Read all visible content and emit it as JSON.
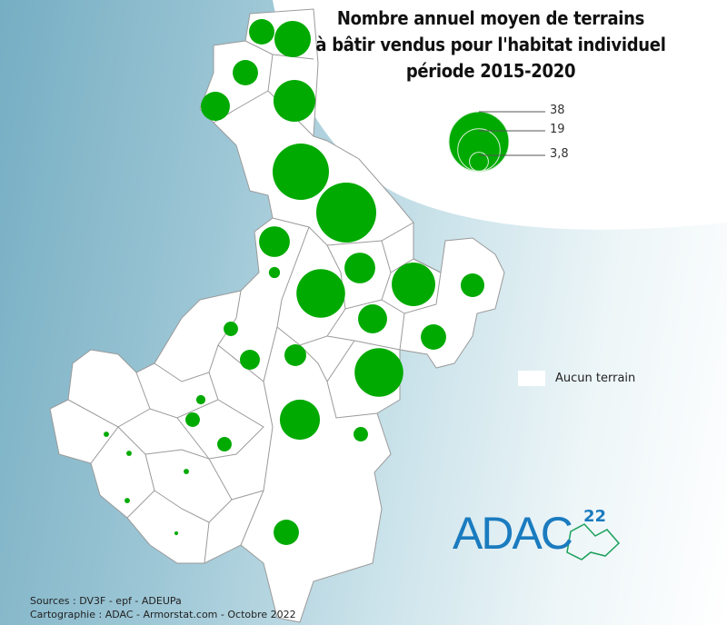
{
  "title": {
    "line1": "Nombre annuel moyen de terrains",
    "line2": "à bâtir vendus pour l'habitat individuel",
    "line3": "période 2015-2020"
  },
  "legend": {
    "sizes": [
      38,
      19,
      3.8
    ],
    "size_labels": [
      "38",
      "19",
      "3,8"
    ],
    "none_label": "Aucun terrain"
  },
  "colors": {
    "circle": "#00aa00",
    "commune_fill": "#ffffff",
    "border": "#9a9a9a",
    "sea": "#86b9cb",
    "logo": "#1a7bbf",
    "logo_outline": "#1aa05a"
  },
  "circle_values": [
    6.8,
    14,
    6.8,
    8.9,
    18.5,
    33.5,
    38,
    10,
    1.3,
    10,
    20,
    25,
    5.9,
    8.9,
    2.2,
    6.8,
    5,
    4.2,
    25,
    0.9,
    17,
    2.2,
    0.3,
    2.2,
    2.2,
    0.3,
    0.3,
    0.3,
    0.15,
    6.8
  ],
  "sources": {
    "line1": "Sources : DV3F - epf - ADEUPa",
    "line2": "Cartographie : ADAC - Armorstat.com - Octobre 2022"
  },
  "logo": {
    "text": "ADAC",
    "superscript": "22"
  }
}
